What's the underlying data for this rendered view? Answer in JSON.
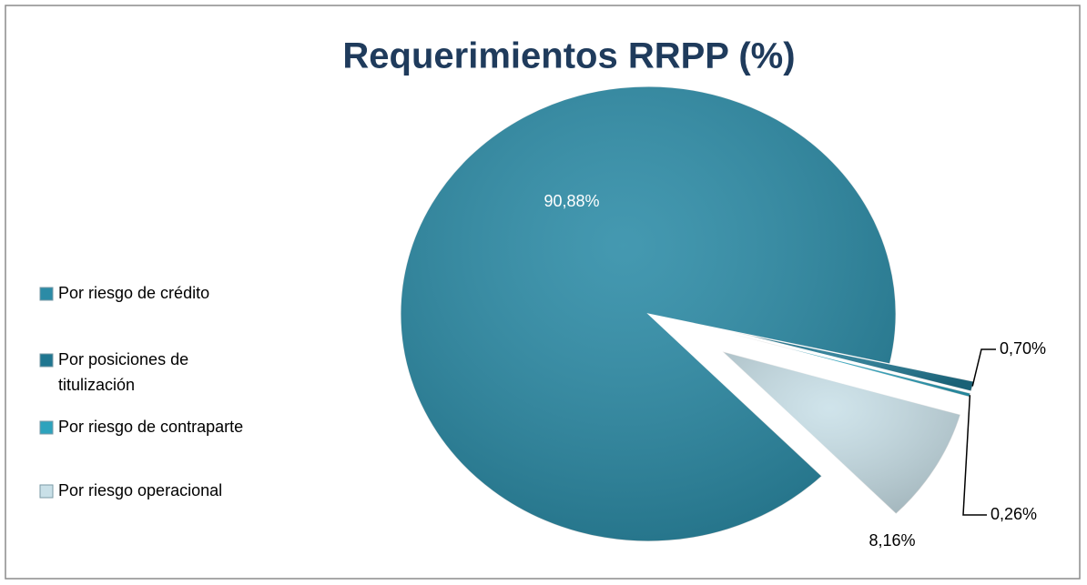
{
  "chart_data": {
    "type": "pie",
    "title": "Requerimientos RRPP (%)",
    "categories": [
      "Por riesgo de crédito",
      "Por posiciones de titulización",
      "Por riesgo de contraparte",
      "Por riesgo operacional"
    ],
    "values": [
      90.88,
      0.7,
      0.26,
      8.16
    ],
    "value_labels": [
      "90,88%",
      "0,70%",
      "0,26%",
      "8,16%"
    ],
    "colors": [
      "#2b8ba6",
      "#1f7690",
      "#2da3bd",
      "#c9e0e8"
    ],
    "legend": "left"
  }
}
